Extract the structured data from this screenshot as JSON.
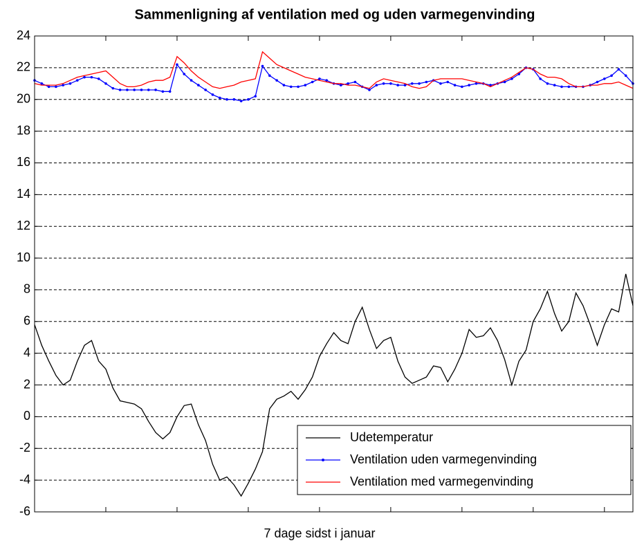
{
  "chart_data": {
    "type": "line",
    "title": "Sammenligning af ventilation med og uden varmegenvinding",
    "x_label": "7 dage sidst i januar",
    "x": [
      0,
      2,
      4,
      6,
      8,
      10,
      12,
      14,
      16,
      18,
      20,
      22,
      24,
      26,
      28,
      30,
      32,
      34,
      36,
      38,
      40,
      42,
      44,
      46,
      48,
      50,
      52,
      54,
      56,
      58,
      60,
      62,
      64,
      66,
      68,
      70,
      72,
      74,
      76,
      78,
      80,
      82,
      84,
      86,
      88,
      90,
      92,
      94,
      96,
      98,
      100,
      102,
      104,
      106,
      108,
      110,
      112,
      114,
      116,
      118,
      120,
      122,
      124,
      126,
      128,
      130,
      132,
      134,
      136,
      138,
      140,
      142,
      144,
      146,
      148,
      150,
      152,
      154,
      156,
      158,
      160,
      162,
      164,
      166,
      168
    ],
    "series": [
      {
        "name": "Udetemperatur",
        "color": "#000000",
        "marker": false,
        "values": [
          5.8,
          4.5,
          3.5,
          2.6,
          2.0,
          2.3,
          3.5,
          4.5,
          4.8,
          3.5,
          3.0,
          1.8,
          1.0,
          0.9,
          0.8,
          0.5,
          -0.3,
          -1.0,
          -1.4,
          -1.0,
          0.0,
          0.7,
          0.8,
          -0.5,
          -1.5,
          -3.0,
          -4.0,
          -3.8,
          -4.3,
          -5.0,
          -4.2,
          -3.3,
          -2.2,
          0.5,
          1.1,
          1.3,
          1.6,
          1.1,
          1.7,
          2.5,
          3.8,
          4.6,
          5.3,
          4.8,
          4.6,
          6.0,
          6.9,
          5.5,
          4.3,
          4.8,
          5.0,
          3.5,
          2.5,
          2.1,
          2.3,
          2.5,
          3.2,
          3.1,
          2.2,
          3.0,
          4.0,
          5.5,
          5.0,
          5.1,
          5.6,
          4.8,
          3.6,
          2.0,
          3.5,
          4.2,
          6.0,
          6.8,
          7.9,
          6.5,
          5.4,
          6.0,
          7.8,
          7.0,
          5.8,
          4.5,
          5.8,
          6.8,
          6.6,
          9.0,
          7.0
        ]
      },
      {
        "name": "Ventilation uden varmegenvinding",
        "color": "#0000ff",
        "marker": true,
        "values": [
          21.2,
          21.0,
          20.8,
          20.8,
          20.9,
          21.0,
          21.2,
          21.4,
          21.4,
          21.3,
          21.0,
          20.7,
          20.6,
          20.6,
          20.6,
          20.6,
          20.6,
          20.6,
          20.5,
          20.5,
          22.2,
          21.6,
          21.2,
          20.9,
          20.6,
          20.3,
          20.1,
          20.0,
          20.0,
          19.9,
          20.0,
          20.2,
          22.1,
          21.5,
          21.2,
          20.9,
          20.8,
          20.8,
          20.9,
          21.1,
          21.3,
          21.2,
          21.0,
          20.9,
          21.0,
          21.1,
          20.8,
          20.6,
          20.9,
          21.0,
          21.0,
          20.9,
          20.9,
          21.0,
          21.0,
          21.1,
          21.2,
          21.0,
          21.1,
          20.9,
          20.8,
          20.9,
          21.0,
          21.0,
          20.9,
          21.0,
          21.1,
          21.3,
          21.6,
          22.0,
          21.9,
          21.3,
          21.0,
          20.9,
          20.8,
          20.8,
          20.8,
          20.8,
          20.9,
          21.1,
          21.3,
          21.5,
          21.9,
          21.5,
          21.0
        ]
      },
      {
        "name": "Ventilation med varmegenvinding",
        "color": "#ff0000",
        "marker": false,
        "values": [
          21.0,
          20.9,
          20.9,
          20.9,
          21.0,
          21.2,
          21.4,
          21.5,
          21.6,
          21.7,
          21.8,
          21.4,
          21.0,
          20.8,
          20.8,
          20.9,
          21.1,
          21.2,
          21.2,
          21.4,
          22.7,
          22.3,
          21.8,
          21.4,
          21.1,
          20.8,
          20.7,
          20.8,
          20.9,
          21.1,
          21.2,
          21.3,
          23.0,
          22.6,
          22.2,
          22.0,
          21.8,
          21.6,
          21.4,
          21.3,
          21.2,
          21.1,
          21.0,
          21.0,
          20.9,
          20.9,
          20.8,
          20.7,
          21.1,
          21.3,
          21.2,
          21.1,
          21.0,
          20.8,
          20.7,
          20.8,
          21.2,
          21.3,
          21.3,
          21.3,
          21.3,
          21.2,
          21.1,
          21.0,
          20.8,
          21.0,
          21.2,
          21.4,
          21.7,
          22.0,
          21.9,
          21.6,
          21.4,
          21.4,
          21.3,
          21.0,
          20.8,
          20.8,
          20.9,
          20.9,
          21.0,
          21.0,
          21.1,
          20.9,
          20.7
        ]
      }
    ],
    "xlim": [
      0,
      168
    ],
    "xticks": [
      20,
      40,
      60,
      80,
      100,
      120,
      140,
      160
    ],
    "ylim": [
      -6,
      24
    ],
    "yticks": [
      -6,
      -4,
      -2,
      0,
      2,
      4,
      6,
      8,
      10,
      12,
      14,
      16,
      18,
      20,
      22,
      24
    ],
    "grid": true,
    "legend": "lower right"
  }
}
